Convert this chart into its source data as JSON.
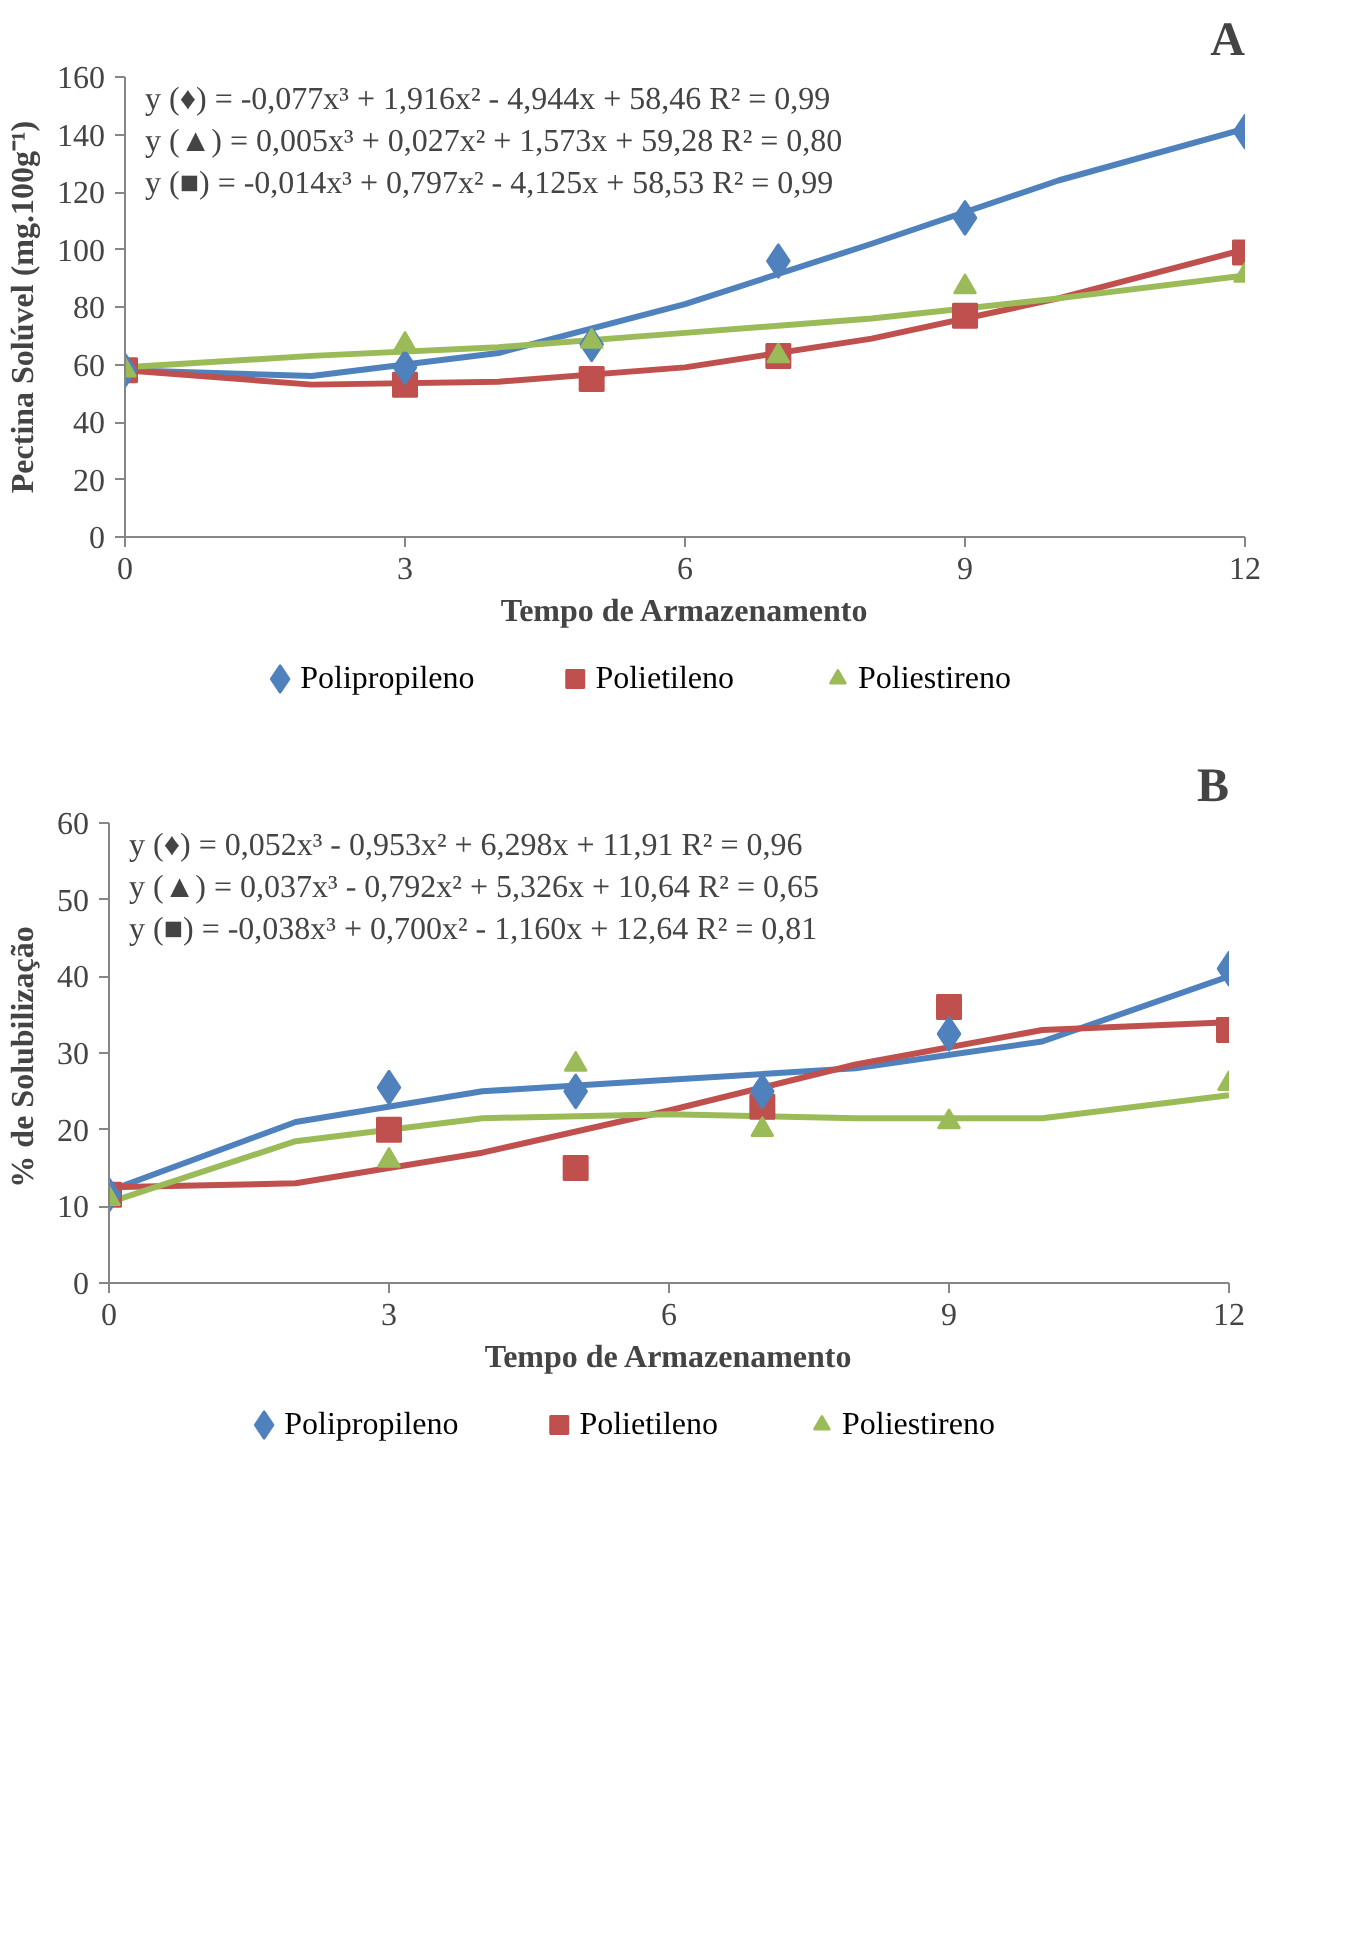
{
  "chart_data": [
    {
      "type": "scatter",
      "title": "A",
      "xlabel": "Tempo de Armazenamento",
      "ylabel": "Pectina Solúvel (mg.100g⁻¹)",
      "xlim": [
        0,
        12
      ],
      "xticks": [
        0,
        3,
        6,
        9,
        12
      ],
      "ylim": [
        0,
        160
      ],
      "yticks": [
        0,
        20,
        40,
        60,
        80,
        100,
        120,
        140,
        160
      ],
      "grid": false,
      "legend": "bottom",
      "annotations": [
        "y (♦) = -0,077x³ + 1,916x² - 4,944x + 58,46  R² = 0,99",
        "y  (▲) = 0,005x³ + 0,027x² + 1,573x + 59,28  R² = 0,80",
        "y (■)  = -0,014x³ + 0,797x² - 4,125x + 58,53  R² = 0,99"
      ],
      "series": [
        {
          "name": "Polipropileno",
          "color": "#4f81bd",
          "marker": "diamond",
          "x": [
            0,
            3,
            5,
            7,
            9,
            12
          ],
          "values": [
            58,
            59,
            67,
            96,
            111,
            141
          ]
        },
        {
          "name": "Polietileno",
          "color": "#c0504d",
          "marker": "square",
          "x": [
            0,
            3,
            5,
            7,
            9,
            12
          ],
          "values": [
            58,
            53,
            55,
            63,
            77,
            99
          ]
        },
        {
          "name": "Poliestireno",
          "color": "#9bbb59",
          "marker": "triangle",
          "x": [
            0,
            3,
            5,
            7,
            9,
            12
          ],
          "values": [
            58,
            67,
            68,
            63,
            87,
            91
          ]
        },
        {
          "type": "line",
          "color": "#4f81bd",
          "x": [
            0,
            2,
            4,
            6,
            8,
            10,
            12
          ],
          "values": [
            58,
            56,
            64,
            81,
            102,
            124,
            142
          ]
        },
        {
          "type": "line",
          "color": "#c0504d",
          "x": [
            0,
            2,
            4,
            6,
            8,
            10,
            12
          ],
          "values": [
            58,
            53,
            54,
            59,
            69,
            83,
            100
          ]
        },
        {
          "type": "line",
          "color": "#9bbb59",
          "x": [
            0,
            2,
            4,
            6,
            8,
            10,
            12
          ],
          "values": [
            59,
            63,
            66,
            71,
            76,
            83,
            91
          ]
        }
      ]
    },
    {
      "type": "scatter",
      "title": "B",
      "xlabel": "Tempo de Armazenamento",
      "ylabel": "%  de Solubilização",
      "xlim": [
        0,
        12
      ],
      "xticks": [
        0,
        3,
        6,
        9,
        12
      ],
      "ylim": [
        0,
        60
      ],
      "yticks": [
        0,
        10,
        20,
        30,
        40,
        50,
        60
      ],
      "grid": false,
      "legend": "bottom",
      "annotations": [
        "y  (♦) = 0,052x³ - 0,953x² + 6,298x + 11,91   R² = 0,96",
        "y  (▲) = 0,037x³ - 0,792x² + 5,326x + 10,64   R² = 0,65",
        "y (■)  = -0,038x³ + 0,700x² - 1,160x + 12,64    R² = 0,81"
      ],
      "series": [
        {
          "name": "Polipropileno",
          "color": "#4f81bd",
          "marker": "diamond",
          "x": [
            0,
            3,
            5,
            7,
            9,
            12
          ],
          "values": [
            11.5,
            25.5,
            25,
            25,
            32.5,
            41
          ]
        },
        {
          "name": "Polietileno",
          "color": "#c0504d",
          "marker": "square",
          "x": [
            0,
            3,
            5,
            7,
            9,
            12
          ],
          "values": [
            11.5,
            20,
            15,
            23,
            36,
            33
          ]
        },
        {
          "name": "Poliestireno",
          "color": "#9bbb59",
          "marker": "triangle",
          "x": [
            0,
            3,
            5,
            7,
            9,
            12
          ],
          "values": [
            11,
            16,
            28.5,
            20,
            21,
            26
          ]
        },
        {
          "type": "line",
          "color": "#4f81bd",
          "x": [
            0,
            2,
            4,
            6,
            8,
            10,
            12
          ],
          "values": [
            12,
            21,
            25,
            26.5,
            28,
            31.5,
            40
          ]
        },
        {
          "type": "line",
          "color": "#c0504d",
          "x": [
            0,
            2,
            4,
            6,
            8,
            10,
            12
          ],
          "values": [
            12.5,
            13,
            17,
            22.5,
            28.5,
            33,
            34
          ]
        },
        {
          "type": "line",
          "color": "#9bbb59",
          "x": [
            0,
            2,
            4,
            6,
            8,
            10,
            12
          ],
          "values": [
            10.5,
            18.5,
            21.5,
            22,
            21.5,
            21.5,
            24.5
          ]
        }
      ]
    }
  ]
}
